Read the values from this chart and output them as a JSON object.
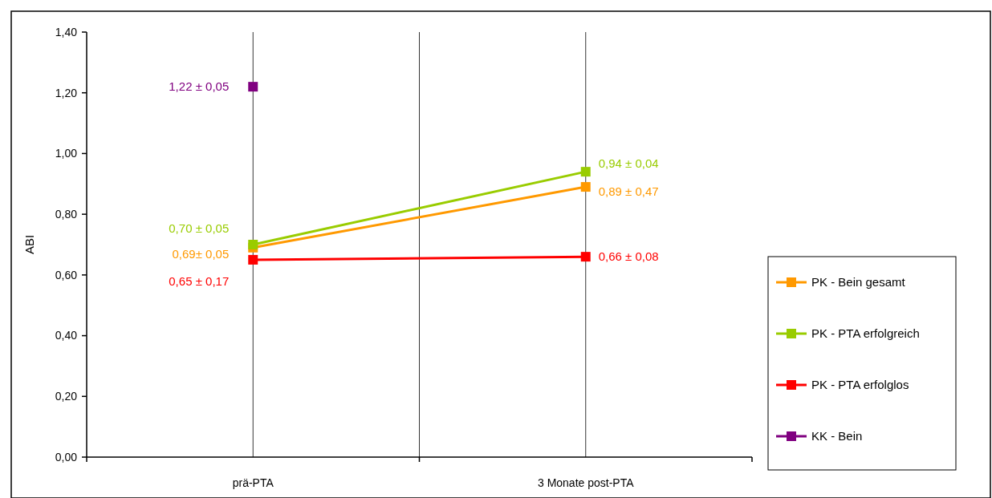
{
  "chart_data": {
    "type": "line",
    "ylabel": "ABI",
    "categories": [
      "prä-PTA",
      "3 Monate post-PTA"
    ],
    "series": [
      {
        "name": "PK - Bein gesamt",
        "color": "#ff9900",
        "values": [
          0.69,
          0.89
        ],
        "value_labels": [
          "0,69± 0,05",
          "0,89 ± 0,47"
        ]
      },
      {
        "name": "PK - PTA erfolgreich",
        "color": "#99cc00",
        "values": [
          0.7,
          0.94
        ],
        "value_labels": [
          "0,70 ± 0,05",
          "0,94 ± 0,04"
        ]
      },
      {
        "name": "PK - PTA erfolglos",
        "color": "#ff0000",
        "values": [
          0.65,
          0.66
        ],
        "value_labels": [
          "0,65 ± 0,17",
          "0,66 ± 0,08"
        ]
      },
      {
        "name": "KK - Bein",
        "color": "#800080",
        "values": [
          1.22,
          null
        ],
        "value_labels": [
          "1,22 ± 0,05",
          null
        ]
      }
    ],
    "ylim": [
      0,
      1.4
    ],
    "yticks": [
      {
        "value": 0,
        "label": "0,00"
      },
      {
        "value": 0.2,
        "label": "0,20"
      },
      {
        "value": 0.4,
        "label": "0,40"
      },
      {
        "value": 0.6,
        "label": "0,60"
      },
      {
        "value": 0.8,
        "label": "0,80"
      },
      {
        "value": 1,
        "label": "1,00"
      },
      {
        "value": 1.2,
        "label": "1,20"
      },
      {
        "value": 1.4,
        "label": "1,40"
      }
    ],
    "grid": "x",
    "legend": "right",
    "marker": "square",
    "line_style": "solid"
  }
}
